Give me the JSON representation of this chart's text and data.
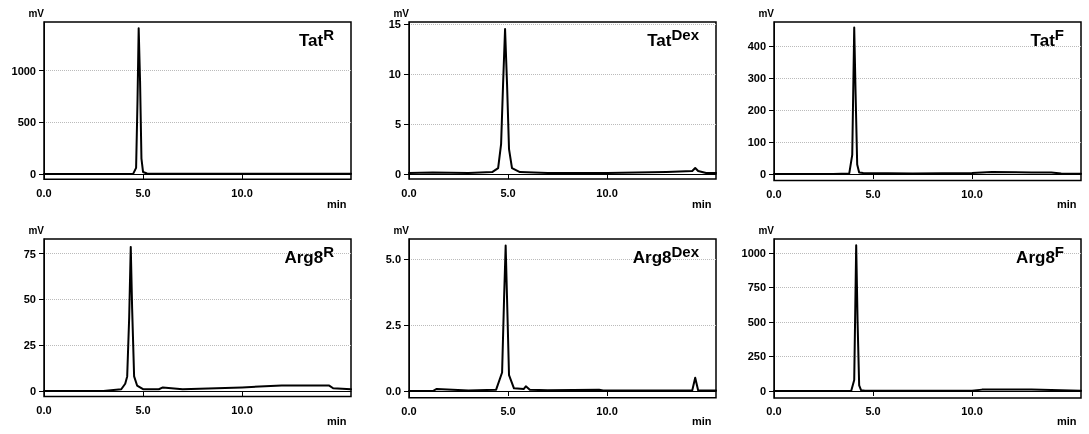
{
  "chart_data": [
    {
      "type": "line",
      "title": "Tat$^{R}$",
      "xlabel": "min",
      "ylabel": "mV",
      "color": "#000000",
      "grid": "y",
      "x": [
        0,
        2,
        4,
        4.5,
        4.65,
        4.72,
        4.78,
        4.85,
        4.92,
        5.0,
        5.2,
        7,
        10,
        13,
        15.5
      ],
      "values": [
        0,
        0,
        0,
        2,
        60,
        700,
        1410,
        900,
        150,
        20,
        5,
        3,
        3,
        2,
        2
      ],
      "xlim": [
        0,
        15.5
      ],
      "xticks": [
        {
          "value": 0,
          "label": "0.0"
        },
        {
          "value": 5,
          "label": "5.0"
        },
        {
          "value": 10,
          "label": "10.0"
        }
      ],
      "ylim": [
        -50,
        1470
      ],
      "yticks": [
        0,
        500,
        1000
      ]
    },
    {
      "type": "line",
      "title": "Tat$^{Dex}$",
      "xlabel": "min",
      "ylabel": "mV",
      "color": "#000000",
      "grid": "y",
      "x": [
        0,
        1.2,
        3,
        4.2,
        4.5,
        4.65,
        4.75,
        4.85,
        4.95,
        5.05,
        5.2,
        5.6,
        7,
        10,
        13,
        14.3,
        14.45,
        14.6,
        15,
        15.5
      ],
      "values": [
        0.1,
        0.15,
        0.1,
        0.2,
        0.6,
        3,
        9,
        14.5,
        9,
        2.5,
        0.6,
        0.2,
        0.1,
        0.1,
        0.2,
        0.3,
        0.6,
        0.3,
        0.1,
        0.1
      ],
      "xlim": [
        0,
        15.5
      ],
      "xticks": [
        {
          "value": 0,
          "label": "0.0"
        },
        {
          "value": 5,
          "label": "5.0"
        },
        {
          "value": 10,
          "label": "10.0"
        }
      ],
      "ylim": [
        -0.5,
        15.2
      ],
      "yticks": [
        0,
        5,
        10,
        15
      ]
    },
    {
      "type": "line",
      "title": "Tat$^{F}$",
      "xlabel": "min",
      "ylabel": "mV",
      "color": "#000000",
      "grid": "y",
      "x": [
        0,
        3,
        3.8,
        3.95,
        4.05,
        4.12,
        4.2,
        4.3,
        4.5,
        7,
        10,
        11,
        13,
        14,
        14.5,
        15.5
      ],
      "values": [
        0,
        0,
        2,
        60,
        458,
        250,
        30,
        5,
        3,
        2,
        3,
        6,
        5,
        5,
        2,
        1
      ],
      "xlim": [
        0,
        15.5
      ],
      "xticks": [
        {
          "value": 0,
          "label": "0.0"
        },
        {
          "value": 5,
          "label": "5.0"
        },
        {
          "value": 10,
          "label": "10.0"
        }
      ],
      "ylim": [
        -20,
        475
      ],
      "yticks": [
        0,
        100,
        200,
        300,
        400
      ]
    },
    {
      "type": "line",
      "title": "Arg8$^{R}$",
      "xlabel": "min",
      "ylabel": "mV",
      "color": "#000000",
      "grid": "y",
      "x": [
        0,
        3,
        3.9,
        4.1,
        4.2,
        4.3,
        4.38,
        4.45,
        4.55,
        4.7,
        5,
        5.8,
        6,
        7,
        10,
        12,
        14.4,
        14.6,
        15.5
      ],
      "values": [
        0,
        0,
        1,
        4,
        8,
        40,
        78.7,
        45,
        8,
        3,
        1,
        1,
        2,
        1,
        2,
        3,
        3,
        1.5,
        1
      ],
      "xlim": [
        0,
        15.5
      ],
      "xticks": [
        {
          "value": 0,
          "label": "0.0"
        },
        {
          "value": 5,
          "label": "5.0"
        },
        {
          "value": 10,
          "label": "10.0"
        }
      ],
      "ylim": [
        -3,
        83
      ],
      "yticks": [
        0,
        25,
        50,
        75
      ]
    },
    {
      "type": "line",
      "title": "Arg8$^{Dex}$",
      "xlabel": "min",
      "ylabel": "mV",
      "color": "#000000",
      "grid": "y",
      "x": [
        0,
        1.2,
        1.4,
        3,
        4.4,
        4.7,
        4.8,
        4.88,
        4.95,
        5.05,
        5.3,
        5.8,
        5.9,
        6.1,
        7,
        9.6,
        9.8,
        14.3,
        14.45,
        14.6,
        15,
        15.5
      ],
      "values": [
        0,
        0,
        0.08,
        0.02,
        0.05,
        0.7,
        3.5,
        5.5,
        3.5,
        0.6,
        0.1,
        0.08,
        0.18,
        0.05,
        0.03,
        0.05,
        0.02,
        0.02,
        0.5,
        0.02,
        0.02,
        0.02
      ],
      "xlim": [
        0,
        15.5
      ],
      "xticks": [
        {
          "value": 0,
          "label": "0.0"
        },
        {
          "value": 5,
          "label": "5.0"
        },
        {
          "value": 10,
          "label": "10.0"
        }
      ],
      "ylim": [
        -0.25,
        5.75
      ],
      "yticks": [
        {
          "value": 0,
          "label": "0.0"
        },
        {
          "value": 2.5,
          "label": "2.5"
        },
        {
          "value": 5,
          "label": "5.0"
        }
      ]
    },
    {
      "type": "line",
      "title": "Arg8$^{F}$",
      "xlabel": "min",
      "ylabel": "mV",
      "color": "#000000",
      "grid": "y",
      "x": [
        0,
        3,
        3.9,
        4.05,
        4.15,
        4.22,
        4.3,
        4.4,
        4.6,
        7,
        10,
        10.5,
        13,
        14,
        15.5
      ],
      "values": [
        0,
        0,
        2,
        80,
        1055,
        500,
        40,
        5,
        2,
        1,
        1,
        10,
        10,
        8,
        2
      ],
      "xlim": [
        0,
        15.5
      ],
      "xticks": [
        {
          "value": 0,
          "label": "0.0"
        },
        {
          "value": 5,
          "label": "5.0"
        },
        {
          "value": 10,
          "label": "10.0"
        }
      ],
      "ylim": [
        -50,
        1100
      ],
      "yticks": [
        0,
        250,
        500,
        750,
        1000
      ]
    }
  ]
}
